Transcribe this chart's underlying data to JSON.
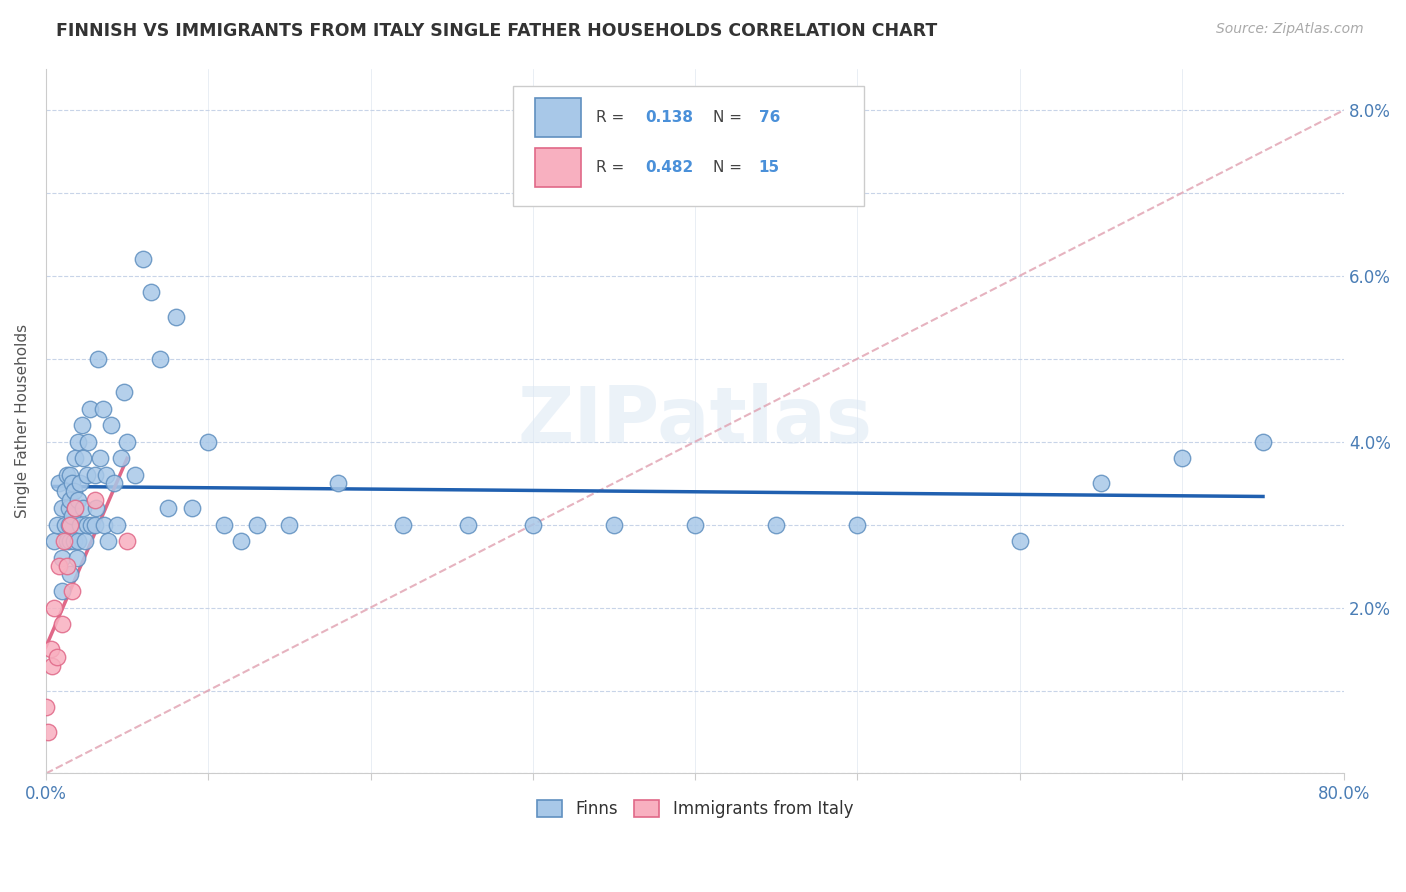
{
  "title": "FINNISH VS IMMIGRANTS FROM ITALY SINGLE FATHER HOUSEHOLDS CORRELATION CHART",
  "source": "Source: ZipAtlas.com",
  "ylabel": "Single Father Households",
  "xlim": [
    0.0,
    0.8
  ],
  "ylim": [
    0.0,
    0.085
  ],
  "r_finns": 0.138,
  "n_finns": 76,
  "r_italy": 0.482,
  "n_italy": 15,
  "finns_color": "#a8c8e8",
  "italy_color": "#f8b0c0",
  "finns_edge_color": "#6090c0",
  "italy_edge_color": "#e06888",
  "finns_line_color": "#2060b0",
  "italy_line_color": "#e06888",
  "diagonal_color": "#e0a0b0",
  "finns_x": [
    0.005,
    0.007,
    0.008,
    0.01,
    0.01,
    0.01,
    0.012,
    0.012,
    0.013,
    0.013,
    0.014,
    0.014,
    0.015,
    0.015,
    0.015,
    0.015,
    0.016,
    0.016,
    0.017,
    0.017,
    0.018,
    0.018,
    0.019,
    0.02,
    0.02,
    0.02,
    0.021,
    0.021,
    0.022,
    0.023,
    0.023,
    0.024,
    0.025,
    0.025,
    0.026,
    0.027,
    0.028,
    0.03,
    0.03,
    0.031,
    0.032,
    0.033,
    0.035,
    0.036,
    0.037,
    0.038,
    0.04,
    0.042,
    0.044,
    0.046,
    0.048,
    0.05,
    0.055,
    0.06,
    0.065,
    0.07,
    0.075,
    0.08,
    0.09,
    0.1,
    0.11,
    0.12,
    0.13,
    0.15,
    0.18,
    0.22,
    0.26,
    0.3,
    0.35,
    0.4,
    0.45,
    0.5,
    0.6,
    0.65,
    0.7,
    0.75
  ],
  "finns_y": [
    0.028,
    0.03,
    0.035,
    0.032,
    0.026,
    0.022,
    0.03,
    0.034,
    0.028,
    0.036,
    0.032,
    0.03,
    0.033,
    0.036,
    0.028,
    0.024,
    0.031,
    0.035,
    0.028,
    0.034,
    0.032,
    0.038,
    0.026,
    0.033,
    0.028,
    0.04,
    0.035,
    0.03,
    0.042,
    0.038,
    0.032,
    0.028,
    0.036,
    0.03,
    0.04,
    0.044,
    0.03,
    0.036,
    0.03,
    0.032,
    0.05,
    0.038,
    0.044,
    0.03,
    0.036,
    0.028,
    0.042,
    0.035,
    0.03,
    0.038,
    0.046,
    0.04,
    0.036,
    0.062,
    0.058,
    0.05,
    0.032,
    0.055,
    0.032,
    0.04,
    0.03,
    0.028,
    0.03,
    0.03,
    0.035,
    0.03,
    0.03,
    0.03,
    0.03,
    0.03,
    0.03,
    0.03,
    0.028,
    0.035,
    0.038,
    0.04
  ],
  "italy_x": [
    0.0,
    0.001,
    0.003,
    0.004,
    0.005,
    0.007,
    0.008,
    0.01,
    0.011,
    0.013,
    0.015,
    0.016,
    0.018,
    0.03,
    0.05
  ],
  "italy_y": [
    0.008,
    0.005,
    0.015,
    0.013,
    0.02,
    0.014,
    0.025,
    0.018,
    0.028,
    0.025,
    0.03,
    0.022,
    0.032,
    0.033,
    0.028
  ]
}
